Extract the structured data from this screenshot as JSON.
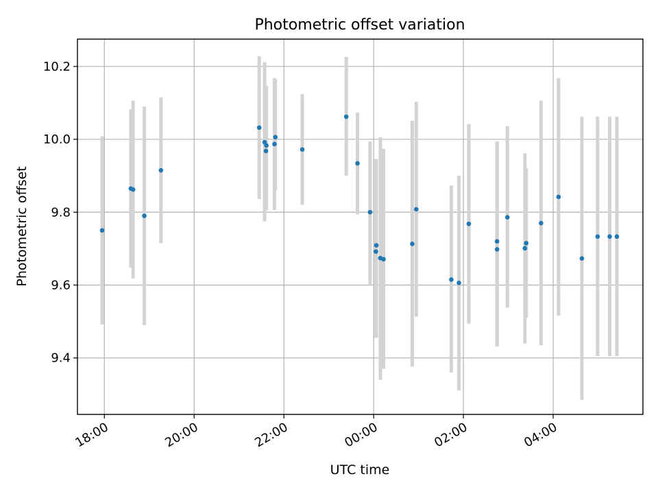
{
  "chart_data": {
    "type": "scatter",
    "title": "Photometric offset variation",
    "xlabel": "UTC time",
    "ylabel": "Photometric offset",
    "grid": true,
    "xlim_hours": [
      -6.6,
      6.0
    ],
    "ylim": [
      9.245,
      10.275
    ],
    "x_ticks": [
      {
        "hours": -6.0,
        "label": "18:00"
      },
      {
        "hours": -4.0,
        "label": "20:00"
      },
      {
        "hours": -2.0,
        "label": "22:00"
      },
      {
        "hours": 0.0,
        "label": "00:00"
      },
      {
        "hours": 2.0,
        "label": "02:00"
      },
      {
        "hours": 4.0,
        "label": "04:00"
      }
    ],
    "y_ticks": [
      {
        "value": 9.4,
        "label": "9.4"
      },
      {
        "value": 9.6,
        "label": "9.6"
      },
      {
        "value": 9.8,
        "label": "9.8"
      },
      {
        "value": 10.0,
        "label": "10.0"
      },
      {
        "value": 10.2,
        "label": "10.2"
      }
    ],
    "x_unit_note": "x values are hours relative to 00:00 UTC (negative = previous evening)",
    "series": [
      {
        "name": "Photometric offset",
        "marker_color": "#1f77b4",
        "error_color": "#d3d3d3",
        "points": [
          {
            "x": -6.05,
            "y": 9.75,
            "err_low": 9.492,
            "err_high": 10.008
          },
          {
            "x": -5.41,
            "y": 9.865,
            "err_low": 9.648,
            "err_high": 10.082
          },
          {
            "x": -5.36,
            "y": 9.862,
            "err_low": 9.618,
            "err_high": 10.106
          },
          {
            "x": -5.11,
            "y": 9.79,
            "err_low": 9.49,
            "err_high": 10.09
          },
          {
            "x": -4.74,
            "y": 9.915,
            "err_low": 9.715,
            "err_high": 10.115
          },
          {
            "x": -2.55,
            "y": 10.032,
            "err_low": 9.836,
            "err_high": 10.228
          },
          {
            "x": -2.43,
            "y": 9.992,
            "err_low": 9.775,
            "err_high": 10.212
          },
          {
            "x": -2.39,
            "y": 9.983,
            "err_low": 9.805,
            "err_high": 10.147
          },
          {
            "x": -2.4,
            "y": 9.968,
            "err_low": 9.805,
            "err_high": 10.147
          },
          {
            "x": -2.21,
            "y": 9.987,
            "err_low": 9.806,
            "err_high": 10.168
          },
          {
            "x": -2.19,
            "y": 10.006,
            "err_low": 9.86,
            "err_high": 10.165
          },
          {
            "x": -1.59,
            "y": 9.972,
            "err_low": 9.82,
            "err_high": 10.124
          },
          {
            "x": -0.61,
            "y": 10.062,
            "err_low": 9.9,
            "err_high": 10.226
          },
          {
            "x": -0.36,
            "y": 9.934,
            "err_low": 9.794,
            "err_high": 10.074
          },
          {
            "x": -0.08,
            "y": 9.8,
            "err_low": 9.6,
            "err_high": 9.994
          },
          {
            "x": 0.06,
            "y": 9.709,
            "err_low": 9.455,
            "err_high": 9.946
          },
          {
            "x": 0.05,
            "y": 9.692,
            "err_low": 9.455,
            "err_high": 9.946
          },
          {
            "x": 0.15,
            "y": 9.674,
            "err_low": 9.34,
            "err_high": 10.006
          },
          {
            "x": 0.22,
            "y": 9.671,
            "err_low": 9.37,
            "err_high": 9.974
          },
          {
            "x": 0.86,
            "y": 9.713,
            "err_low": 9.376,
            "err_high": 10.051
          },
          {
            "x": 0.95,
            "y": 9.808,
            "err_low": 9.513,
            "err_high": 10.103
          },
          {
            "x": 1.73,
            "y": 9.615,
            "err_low": 9.36,
            "err_high": 9.873
          },
          {
            "x": 1.9,
            "y": 9.606,
            "err_low": 9.311,
            "err_high": 9.9
          },
          {
            "x": 2.12,
            "y": 9.768,
            "err_low": 9.494,
            "err_high": 10.042
          },
          {
            "x": 2.75,
            "y": 9.72,
            "err_low": 9.432,
            "err_high": 9.994
          },
          {
            "x": 2.75,
            "y": 9.698,
            "err_low": 9.432,
            "err_high": 9.994
          },
          {
            "x": 2.98,
            "y": 9.786,
            "err_low": 9.538,
            "err_high": 10.036
          },
          {
            "x": 3.37,
            "y": 9.701,
            "err_low": 9.44,
            "err_high": 9.962
          },
          {
            "x": 3.4,
            "y": 9.715,
            "err_low": 9.51,
            "err_high": 9.92
          },
          {
            "x": 3.73,
            "y": 9.77,
            "err_low": 9.435,
            "err_high": 10.106
          },
          {
            "x": 4.12,
            "y": 9.842,
            "err_low": 9.516,
            "err_high": 10.168
          },
          {
            "x": 4.64,
            "y": 9.673,
            "err_low": 9.285,
            "err_high": 10.062
          },
          {
            "x": 4.99,
            "y": 9.733,
            "err_low": 9.405,
            "err_high": 10.062
          },
          {
            "x": 5.26,
            "y": 9.733,
            "err_low": 9.405,
            "err_high": 10.062
          },
          {
            "x": 5.42,
            "y": 9.733,
            "err_low": 9.405,
            "err_high": 10.062
          }
        ]
      }
    ]
  }
}
